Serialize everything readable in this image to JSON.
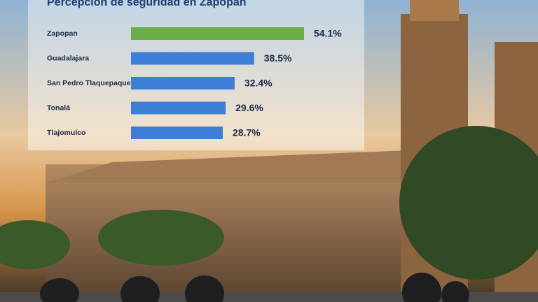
{
  "chart_data": {
    "type": "bar",
    "orientation": "horizontal",
    "title": "Percepción de seguridad en Zapopan",
    "categories": [
      "Zapopan",
      "Guadalajara",
      "San Pedro Tlaquepaque",
      "Tonalá",
      "Tlajomulco"
    ],
    "values": [
      54.1,
      38.5,
      32.4,
      29.6,
      28.7
    ],
    "value_labels": [
      "54.1%",
      "38.5%",
      "32.4%",
      "29.6%",
      "28.7%"
    ],
    "colors": [
      "#6aae45",
      "#3d7fd6",
      "#3d7fd6",
      "#3d7fd6",
      "#3d7fd6"
    ]
  }
}
